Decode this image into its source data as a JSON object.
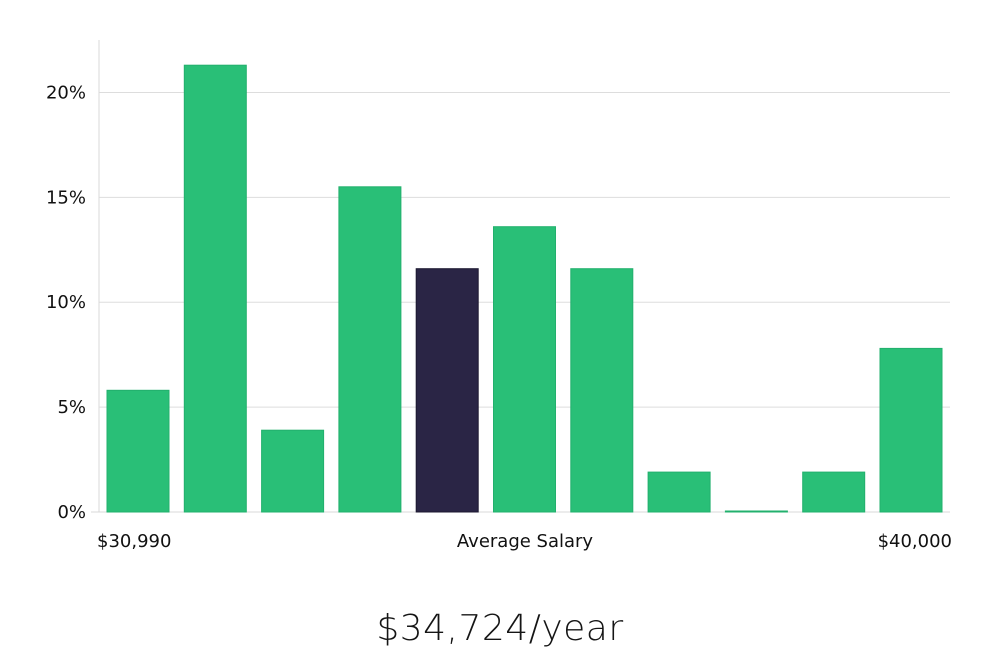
{
  "chart_data": {
    "type": "bar",
    "values": [
      5.8,
      21.3,
      3.9,
      15.5,
      11.6,
      13.6,
      11.6,
      1.9,
      0.05,
      1.9,
      7.8
    ],
    "highlight_index": 4,
    "ylim": [
      0,
      22.5
    ],
    "yticks": [
      0,
      5,
      10,
      15,
      20
    ],
    "ytick_labels": [
      "0%",
      "5%",
      "10%",
      "15%",
      "20%"
    ],
    "grid": true,
    "x_labels": {
      "left": "$30,990",
      "center": "Average Salary",
      "right": "$40,000"
    },
    "colors": {
      "bar": "#29BF77",
      "bar_edge": "#22B06D",
      "highlight": "#2A2545",
      "grid": "#DDDDDD",
      "axis": "#D9D9D9"
    }
  },
  "headline": "$34,724/year"
}
